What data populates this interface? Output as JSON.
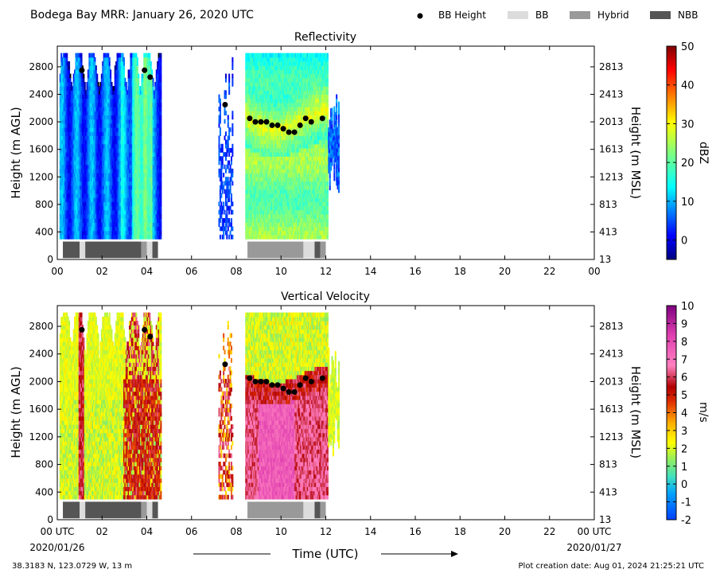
{
  "header": {
    "title": "Bodega Bay MRR:  January 26, 2020 UTC",
    "legend": [
      {
        "label": "BB Height",
        "symbol": "dot",
        "color": "#000000"
      },
      {
        "label": "BB",
        "symbol": "box",
        "color": "#dcdcdc"
      },
      {
        "label": "Hybrid",
        "symbol": "box",
        "color": "#999999"
      },
      {
        "label": "NBB",
        "symbol": "box",
        "color": "#555555"
      }
    ]
  },
  "footer": {
    "location": "38.3183 N, 123.0729 W, 13 m",
    "creation": "Plot creation date: Aug 01, 2024 21:25:21 UTC",
    "xlabel": "Time (UTC)",
    "date_start": "2020/01/26",
    "date_end": "2020/01/27"
  },
  "chart_data": [
    {
      "type": "heatmap",
      "title": "Reflectivity",
      "ylabel": "Height (m AGL)",
      "ylabel_right": "Height (m MSL)",
      "colorbar_label": "dBZ",
      "xlim": [
        0,
        24
      ],
      "ylim": [
        0,
        3100
      ],
      "x_ticks": [
        "00",
        "02",
        "04",
        "06",
        "08",
        "10",
        "12",
        "14",
        "16",
        "18",
        "20",
        "22",
        "00"
      ],
      "y_ticks": [
        0,
        400,
        800,
        1200,
        1600,
        2000,
        2400,
        2800
      ],
      "y_ticks_right": [
        13,
        413,
        813,
        1213,
        1613,
        2013,
        2413,
        2813
      ],
      "colorbar": {
        "range": [
          -5,
          50
        ],
        "ticks": [
          0,
          10,
          20,
          30,
          40,
          50
        ],
        "colormap": "jet"
      },
      "bb_height": [
        {
          "t": 1.1,
          "h": 2750
        },
        {
          "t": 3.9,
          "h": 2750
        },
        {
          "t": 4.15,
          "h": 2650
        },
        {
          "t": 7.5,
          "h": 2250
        },
        {
          "t": 8.6,
          "h": 2050
        },
        {
          "t": 8.85,
          "h": 2000
        },
        {
          "t": 9.1,
          "h": 2000
        },
        {
          "t": 9.35,
          "h": 2000
        },
        {
          "t": 9.6,
          "h": 1950
        },
        {
          "t": 9.85,
          "h": 1950
        },
        {
          "t": 10.1,
          "h": 1900
        },
        {
          "t": 10.35,
          "h": 1850
        },
        {
          "t": 10.6,
          "h": 1850
        },
        {
          "t": 10.85,
          "h": 1950
        },
        {
          "t": 11.1,
          "h": 2050
        },
        {
          "t": 11.35,
          "h": 2000
        },
        {
          "t": 11.85,
          "h": 2050
        }
      ],
      "bb_type_strip": [
        {
          "t0": 0.25,
          "t1": 1.0,
          "class": "NBB"
        },
        {
          "t0": 1.0,
          "t1": 1.25,
          "class": "BB"
        },
        {
          "t0": 1.25,
          "t1": 3.75,
          "class": "NBB"
        },
        {
          "t0": 3.75,
          "t1": 4.0,
          "class": "Hybrid"
        },
        {
          "t0": 4.0,
          "t1": 4.25,
          "class": "BB"
        },
        {
          "t0": 4.25,
          "t1": 4.5,
          "class": "NBB"
        },
        {
          "t0": 8.5,
          "t1": 11.0,
          "class": "Hybrid"
        },
        {
          "t0": 11.0,
          "t1": 11.5,
          "class": "BB"
        },
        {
          "t0": 11.5,
          "t1": 11.75,
          "class": "NBB"
        },
        {
          "t0": 11.75,
          "t1": 12.0,
          "class": "Hybrid"
        }
      ],
      "data_segments": [
        {
          "t0": 0.1,
          "t1": 4.6,
          "description": "low values mostly 0-15 dBZ; higher band near 03:30-04:00"
        },
        {
          "t0": 7.2,
          "t1": 7.8,
          "description": "sparse weak echoes"
        },
        {
          "t0": 8.4,
          "t1": 12.6,
          "description": "bright band enhancement 25-35 dBZ near 2000 m"
        }
      ]
    },
    {
      "type": "heatmap",
      "title": "Vertical Velocity",
      "ylabel": "Height (m AGL)",
      "ylabel_right": "Height (m MSL)",
      "colorbar_label": "m/s",
      "xlim": [
        0,
        24
      ],
      "ylim": [
        0,
        3100
      ],
      "x_ticks": [
        "00 UTC",
        "02",
        "04",
        "06",
        "08",
        "10",
        "12",
        "14",
        "16",
        "18",
        "20",
        "22",
        "00 UTC"
      ],
      "y_ticks": [
        0,
        400,
        800,
        1200,
        1600,
        2000,
        2400,
        2800
      ],
      "y_ticks_right": [
        13,
        413,
        813,
        1213,
        1613,
        2013,
        2413,
        2813
      ],
      "colorbar": {
        "range": [
          -2,
          10
        ],
        "ticks": [
          -2,
          -1,
          0,
          1,
          2,
          3,
          4,
          5,
          6,
          7,
          8,
          9,
          10
        ],
        "colormap": "velocity"
      },
      "bb_height": [
        {
          "t": 1.1,
          "h": 2750
        },
        {
          "t": 3.9,
          "h": 2750
        },
        {
          "t": 4.15,
          "h": 2650
        },
        {
          "t": 7.5,
          "h": 2250
        },
        {
          "t": 8.6,
          "h": 2050
        },
        {
          "t": 8.85,
          "h": 2000
        },
        {
          "t": 9.1,
          "h": 2000
        },
        {
          "t": 9.35,
          "h": 2000
        },
        {
          "t": 9.6,
          "h": 1950
        },
        {
          "t": 9.85,
          "h": 1950
        },
        {
          "t": 10.1,
          "h": 1900
        },
        {
          "t": 10.35,
          "h": 1850
        },
        {
          "t": 10.6,
          "h": 1850
        },
        {
          "t": 10.85,
          "h": 1950
        },
        {
          "t": 11.1,
          "h": 2050
        },
        {
          "t": 11.35,
          "h": 2000
        },
        {
          "t": 11.85,
          "h": 2050
        }
      ],
      "bb_type_strip": [
        {
          "t0": 0.25,
          "t1": 1.0,
          "class": "NBB"
        },
        {
          "t0": 1.0,
          "t1": 1.25,
          "class": "BB"
        },
        {
          "t0": 1.25,
          "t1": 3.75,
          "class": "NBB"
        },
        {
          "t0": 3.75,
          "t1": 4.0,
          "class": "Hybrid"
        },
        {
          "t0": 4.0,
          "t1": 4.25,
          "class": "BB"
        },
        {
          "t0": 4.25,
          "t1": 4.5,
          "class": "NBB"
        },
        {
          "t0": 8.5,
          "t1": 11.0,
          "class": "Hybrid"
        },
        {
          "t0": 11.0,
          "t1": 11.5,
          "class": "BB"
        },
        {
          "t0": 11.5,
          "t1": 11.75,
          "class": "NBB"
        },
        {
          "t0": 11.75,
          "t1": 12.0,
          "class": "Hybrid"
        }
      ],
      "data_segments": [
        {
          "t0": 0.1,
          "t1": 4.6,
          "description": "mostly 1-3 m/s above ~1800 m; 5-6 m/s streaks near 01:00 and 03:00-04:30"
        },
        {
          "t0": 7.2,
          "t1": 7.8,
          "description": "sparse fall speeds 3-6 m/s"
        },
        {
          "t0": 8.4,
          "t1": 12.6,
          "description": "6-8 m/s below bright band, 1-3 m/s above"
        }
      ]
    }
  ]
}
